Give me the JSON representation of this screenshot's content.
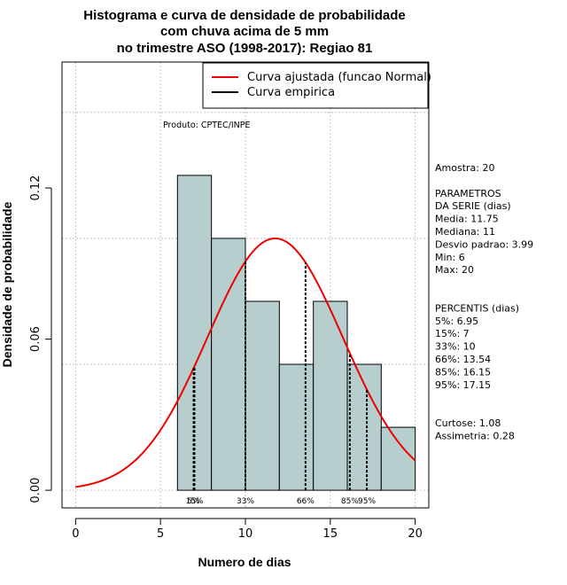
{
  "chart_data": {
    "type": "histogram",
    "title_lines": [
      "Histograma e curva de densidade de probabilidade",
      "com chuva acima de 5 mm",
      "no trimestre ASO (1998-2017): Regiao 81"
    ],
    "xlabel": "Numero de dias",
    "ylabel": "Densidade de probabilidade",
    "xlim": [
      -0.8,
      20.8
    ],
    "ylim": [
      -0.007,
      0.17
    ],
    "x_ticks": [
      0,
      5,
      10,
      15,
      20
    ],
    "y_ticks": [
      0.0,
      0.06,
      0.12
    ],
    "y_tick_labels": [
      "0.00",
      "0.06",
      "0.12"
    ],
    "grid_x": [
      0,
      5,
      10,
      15,
      20
    ],
    "grid_y": [
      0.0,
      0.05,
      0.1,
      0.15
    ],
    "bins": [
      {
        "start": 6,
        "end": 8,
        "density": 0.125
      },
      {
        "start": 8,
        "end": 10,
        "density": 0.1
      },
      {
        "start": 10,
        "end": 12,
        "density": 0.075
      },
      {
        "start": 12,
        "end": 14,
        "density": 0.05
      },
      {
        "start": 14,
        "end": 16,
        "density": 0.075
      },
      {
        "start": 16,
        "end": 18,
        "density": 0.05
      },
      {
        "start": 18,
        "end": 20,
        "density": 0.025
      }
    ],
    "bar_color": "#b7cece",
    "normal_curve": {
      "mean": 11.75,
      "sd": 3.99,
      "color": "#ee0000"
    },
    "percentile_markers": [
      {
        "x": 6.95,
        "label": "5%"
      },
      {
        "x": 7.0,
        "label": "15%"
      },
      {
        "x": 10.0,
        "label": "33%"
      },
      {
        "x": 13.54,
        "label": "66%"
      },
      {
        "x": 16.15,
        "label": "85%"
      },
      {
        "x": 17.15,
        "label": "95%"
      }
    ],
    "legend": {
      "position": "top-right",
      "entries": [
        {
          "label": "Curva ajustada (funcao Normal)",
          "color": "#ee0000"
        },
        {
          "label": "Curva empirica",
          "color": "#000000"
        }
      ]
    },
    "annotation": "Produto: CPTEC/INPE",
    "stats_lines": [
      "Amostra: 20",
      "",
      " PARAMETROS",
      "DA SERIE (dias)",
      "  Media: 11.75",
      "  Mediana: 11",
      "  Desvio padrao: 3.99",
      "  Min: 6",
      "  Max: 20",
      "",
      "",
      "PERCENTIS (dias)",
      "  5%: 6.95",
      "  15%: 7",
      "  33%: 10",
      "  66%: 13.54",
      "  85%: 16.15",
      "  95%: 17.15",
      "",
      "",
      "   Curtose: 1.08",
      "Assimetria: 0.28"
    ]
  }
}
